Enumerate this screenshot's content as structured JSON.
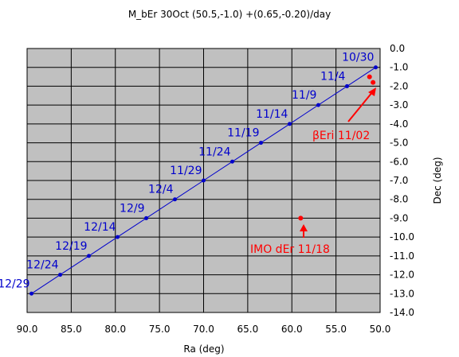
{
  "chart_data": {
    "type": "scatter",
    "title": "M_bEr 30Oct (50.5,-1.0) +(0.65,-0.20)/day",
    "xlabel": "Ra (deg)",
    "ylabel": "Dec (deg)",
    "xlim": [
      90.0,
      50.0
    ],
    "ylim": [
      -14.0,
      0.0
    ],
    "x_reversed": true,
    "grid": true,
    "x_ticks": [
      "90.0",
      "85.0",
      "80.0",
      "75.0",
      "70.0",
      "65.0",
      "60.0",
      "55.0",
      "50.0"
    ],
    "y_ticks": [
      "0.0",
      "-1.0",
      "-2.0",
      "-3.0",
      "-4.0",
      "-5.0",
      "-6.0",
      "-7.0",
      "-8.0",
      "-9.0",
      "-10.0",
      "-11.0",
      "-12.0",
      "-13.0",
      "-14.0"
    ],
    "colors": {
      "plot_bg": "#c0c0c0",
      "line": "#0000cc",
      "highlight": "#ff0000",
      "grid": "#000000"
    },
    "series": [
      {
        "x": [
          50.5,
          53.75,
          57.0,
          60.25,
          63.5,
          66.75,
          70.0,
          73.25,
          76.5,
          79.75,
          83.0,
          86.25,
          89.5
        ],
        "y": [
          -1.0,
          -2.0,
          -3.0,
          -4.0,
          -5.0,
          -6.0,
          -7.0,
          -8.0,
          -9.0,
          -10.0,
          -11.0,
          -12.0,
          -13.0
        ],
        "labels": [
          "10/30",
          "11/4",
          "11/9",
          "11/14",
          "11/19",
          "11/24",
          "11/29",
          "12/4",
          "12/9",
          "12/14",
          "12/19",
          "12/24",
          "12/29"
        ]
      }
    ],
    "highlights": [
      {
        "x": 51.2,
        "y": -1.5
      },
      {
        "x": 50.8,
        "y": -1.8
      },
      {
        "x": 59.0,
        "y": -9.0
      }
    ],
    "annotations": [
      {
        "text": "βEri 11/02",
        "x": 58.5,
        "y": -4.5
      },
      {
        "text": "IMO dEr 11/18",
        "x": 59.0,
        "y": -10.6
      }
    ]
  }
}
